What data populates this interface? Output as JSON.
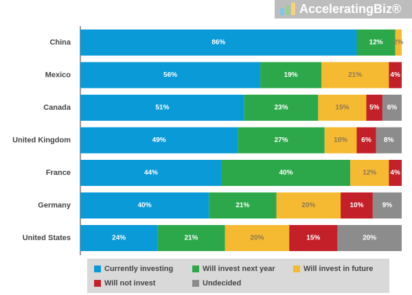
{
  "chart_data": {
    "type": "stacked_bar_horizontal",
    "watermark": "AcceleratingBiz®",
    "categories": [
      "China",
      "Mexico",
      "Canada",
      "United Kingdom",
      "France",
      "Germany",
      "United States"
    ],
    "xlim": [
      0,
      100
    ],
    "legend_position": "bottom",
    "series": [
      {
        "name": "Currently investing",
        "color": "#0a9ad7",
        "values": [
          86,
          56,
          51,
          49,
          44,
          40,
          24
        ],
        "value_labels": [
          "86%",
          "56%",
          "51%",
          "49%",
          "44%",
          "40%",
          "24%"
        ]
      },
      {
        "name": "Will invest next year",
        "color": "#2ca84b",
        "values": [
          12,
          19,
          23,
          27,
          40,
          21,
          21
        ],
        "value_labels": [
          "12%",
          "19%",
          "23%",
          "27%",
          "40%",
          "21%",
          "21%"
        ]
      },
      {
        "name": "Will invest in future",
        "color": "#f5b932",
        "values": [
          2,
          21,
          15,
          10,
          12,
          20,
          20
        ],
        "value_labels": [
          "2%",
          "21%",
          "15%",
          "10%",
          "12%",
          "20%",
          "20%"
        ]
      },
      {
        "name": "Will not invest",
        "color": "#c3202a",
        "values": [
          null,
          4,
          5,
          6,
          4,
          10,
          15
        ],
        "value_labels": [
          null,
          "4%",
          "5%",
          "6%",
          "4%",
          "10%",
          "15%"
        ]
      },
      {
        "name": "Undecided",
        "color": "#8c8c8c",
        "values": [
          null,
          null,
          6,
          8,
          null,
          9,
          20
        ],
        "value_labels": [
          null,
          null,
          "6%",
          "8%",
          null,
          "9%",
          "20%"
        ]
      }
    ]
  }
}
